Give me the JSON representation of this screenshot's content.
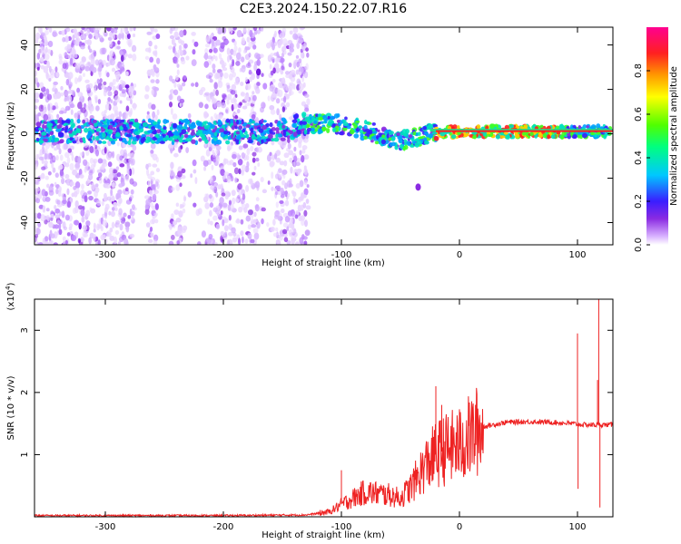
{
  "title": "C2E3.2024.150.22.07.R16",
  "chart_data": [
    {
      "type": "heatmap",
      "xlabel": "Height of straight line (km)",
      "ylabel": "Frequency (Hz)",
      "xlim": [
        -360,
        130
      ],
      "ylim": [
        -50,
        48
      ],
      "x_ticks": [
        -300,
        -200,
        -100,
        0,
        100
      ],
      "y_ticks": [
        -40,
        -20,
        0,
        20,
        40
      ],
      "colorbar": {
        "label": "Normalized spectral amplitude",
        "range": [
          0.0,
          1.0
        ],
        "ticks": [
          0.0,
          0.2,
          0.4,
          0.6,
          0.8
        ],
        "colormap": "rainbow (violet to magenta)"
      },
      "ridge": [
        {
          "x": -355,
          "y": 1
        },
        {
          "x": -300,
          "y": 1
        },
        {
          "x": -250,
          "y": 1
        },
        {
          "x": -200,
          "y": 1
        },
        {
          "x": -160,
          "y": 1
        },
        {
          "x": -130,
          "y": 4
        },
        {
          "x": -110,
          "y": 5
        },
        {
          "x": -90,
          "y": 3
        },
        {
          "x": -75,
          "y": 1
        },
        {
          "x": -60,
          "y": -2
        },
        {
          "x": -50,
          "y": -3
        },
        {
          "x": -40,
          "y": -2
        },
        {
          "x": -25,
          "y": 0
        },
        {
          "x": 0,
          "y": 1
        },
        {
          "x": 50,
          "y": 1
        },
        {
          "x": 100,
          "y": 1
        },
        {
          "x": 128,
          "y": 1
        }
      ],
      "grid": false
    },
    {
      "type": "line",
      "xlabel": "Height of straight line (km)",
      "ylabel": "SNR (10 * v/v)",
      "y_multiplier": "(x10^4)",
      "xlim": [
        -360,
        130
      ],
      "ylim": [
        0,
        3.5
      ],
      "x_ticks": [
        -300,
        -200,
        -100,
        0,
        100
      ],
      "y_ticks": [
        1,
        2,
        3
      ],
      "color": "#ee2222",
      "envelope": [
        {
          "x": -360,
          "y": 0.02
        },
        {
          "x": -200,
          "y": 0.02
        },
        {
          "x": -130,
          "y": 0.03
        },
        {
          "x": -110,
          "y": 0.08
        },
        {
          "x": -100,
          "y": 0.2
        },
        {
          "x": -80,
          "y": 0.4
        },
        {
          "x": -60,
          "y": 0.35
        },
        {
          "x": -50,
          "y": 0.3
        },
        {
          "x": -40,
          "y": 0.5
        },
        {
          "x": -30,
          "y": 0.8
        },
        {
          "x": -20,
          "y": 1.0
        },
        {
          "x": -10,
          "y": 1.1
        },
        {
          "x": 0,
          "y": 1.15
        },
        {
          "x": 10,
          "y": 1.3
        },
        {
          "x": 20,
          "y": 1.45
        },
        {
          "x": 40,
          "y": 1.52
        },
        {
          "x": 60,
          "y": 1.53
        },
        {
          "x": 80,
          "y": 1.52
        },
        {
          "x": 95,
          "y": 1.5
        },
        {
          "x": 105,
          "y": 1.48
        },
        {
          "x": 130,
          "y": 1.48
        }
      ],
      "spikes": [
        {
          "x": -20,
          "y": 2.1
        },
        {
          "x": -100,
          "y": 0.75
        },
        {
          "x": -15,
          "y": 1.8
        },
        {
          "x": 100,
          "y": 2.95
        },
        {
          "x": 100.5,
          "y": 0.45
        },
        {
          "x": 117,
          "y": 2.2
        },
        {
          "x": 118,
          "y": 3.5
        },
        {
          "x": 119,
          "y": 0.15
        }
      ]
    }
  ]
}
